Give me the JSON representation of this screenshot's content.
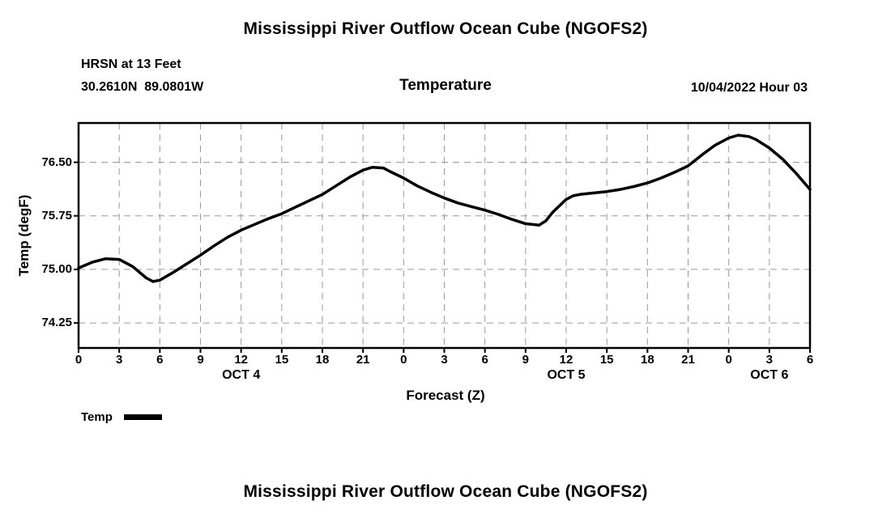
{
  "page": {
    "bottom_title": "Mississippi River Outflow Ocean Cube (NGOFS2)"
  },
  "chart_data": {
    "type": "line",
    "title": "Mississippi River Outflow Ocean Cube (NGOFS2)",
    "station": "HRSN at 13 Feet",
    "coordinates": "30.2610N  89.0801W",
    "subtitle": "Temperature",
    "datetime": "10/04/2022 Hour 03",
    "xlabel": "Forecast (Z)",
    "ylabel": "Temp (degF)",
    "line_color": "#000000",
    "grid_color": "#999999",
    "xlim": [
      0,
      54
    ],
    "ylim": [
      73.9,
      77.05
    ],
    "legend": [
      {
        "name": "Temp",
        "color": "#000000"
      }
    ],
    "x_ticks": [
      {
        "hour": 0,
        "label": "0"
      },
      {
        "hour": 3,
        "label": "3"
      },
      {
        "hour": 6,
        "label": "6"
      },
      {
        "hour": 9,
        "label": "9"
      },
      {
        "hour": 12,
        "label": "12"
      },
      {
        "hour": 15,
        "label": "15"
      },
      {
        "hour": 18,
        "label": "18"
      },
      {
        "hour": 21,
        "label": "21"
      },
      {
        "hour": 24,
        "label": "0"
      },
      {
        "hour": 27,
        "label": "3"
      },
      {
        "hour": 30,
        "label": "6"
      },
      {
        "hour": 33,
        "label": "9"
      },
      {
        "hour": 36,
        "label": "12"
      },
      {
        "hour": 39,
        "label": "15"
      },
      {
        "hour": 42,
        "label": "18"
      },
      {
        "hour": 45,
        "label": "21"
      },
      {
        "hour": 48,
        "label": "0"
      },
      {
        "hour": 51,
        "label": "3"
      },
      {
        "hour": 54,
        "label": "6"
      }
    ],
    "x_date_labels": [
      {
        "hour": 12,
        "label": "OCT 4"
      },
      {
        "hour": 36,
        "label": "OCT 5"
      },
      {
        "hour": 51,
        "label": "OCT 6"
      }
    ],
    "y_ticks": [
      {
        "value": 76.5,
        "label": "76.50"
      },
      {
        "value": 75.75,
        "label": "75.75"
      },
      {
        "value": 75.0,
        "label": "75.00"
      },
      {
        "value": 74.25,
        "label": "74.25"
      }
    ],
    "series": [
      {
        "name": "Temp",
        "color": "#000000",
        "points": [
          [
            0,
            75.02
          ],
          [
            1,
            75.1
          ],
          [
            2,
            75.15
          ],
          [
            3,
            75.14
          ],
          [
            4,
            75.04
          ],
          [
            5,
            74.88
          ],
          [
            5.5,
            74.83
          ],
          [
            6,
            74.85
          ],
          [
            7,
            74.96
          ],
          [
            8,
            75.08
          ],
          [
            9,
            75.2
          ],
          [
            10,
            75.33
          ],
          [
            11,
            75.45
          ],
          [
            12,
            75.55
          ],
          [
            13,
            75.63
          ],
          [
            14,
            75.71
          ],
          [
            15,
            75.78
          ],
          [
            16,
            75.87
          ],
          [
            17,
            75.96
          ],
          [
            18,
            76.05
          ],
          [
            19,
            76.17
          ],
          [
            20,
            76.29
          ],
          [
            21,
            76.39
          ],
          [
            21.7,
            76.43
          ],
          [
            22.5,
            76.42
          ],
          [
            23,
            76.37
          ],
          [
            24,
            76.28
          ],
          [
            25,
            76.17
          ],
          [
            26,
            76.08
          ],
          [
            27,
            76.0
          ],
          [
            28,
            75.93
          ],
          [
            29,
            75.88
          ],
          [
            30,
            75.83
          ],
          [
            31,
            75.77
          ],
          [
            32,
            75.7
          ],
          [
            33,
            75.64
          ],
          [
            34,
            75.62
          ],
          [
            34.5,
            75.68
          ],
          [
            35,
            75.8
          ],
          [
            36,
            75.98
          ],
          [
            36.5,
            76.03
          ],
          [
            37,
            76.05
          ],
          [
            38,
            76.07
          ],
          [
            39,
            76.09
          ],
          [
            40,
            76.12
          ],
          [
            41,
            76.16
          ],
          [
            42,
            76.21
          ],
          [
            43,
            76.28
          ],
          [
            44,
            76.36
          ],
          [
            45,
            76.45
          ],
          [
            46,
            76.6
          ],
          [
            47,
            76.74
          ],
          [
            48,
            76.84
          ],
          [
            48.7,
            76.88
          ],
          [
            49.5,
            76.86
          ],
          [
            50,
            76.82
          ],
          [
            51,
            76.7
          ],
          [
            52,
            76.54
          ],
          [
            53,
            76.34
          ],
          [
            54,
            76.12
          ]
        ]
      }
    ]
  }
}
